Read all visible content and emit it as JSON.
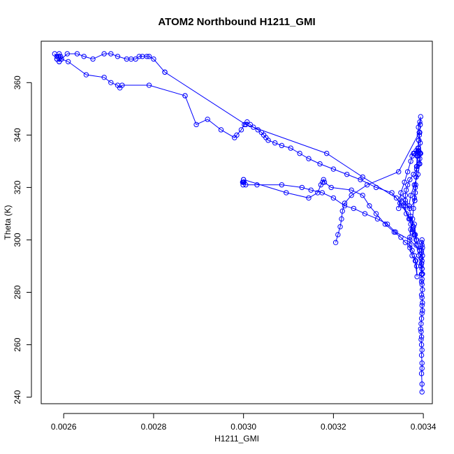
{
  "chart_data": {
    "type": "scatter",
    "title": "ATOM2 Northbound H1211_GMI",
    "xlabel": "H1211_GMI",
    "ylabel": "Theta (K)",
    "xlim": [
      0.00255,
      0.00342
    ],
    "ylim": [
      237.5,
      375.8
    ],
    "x_ticks": [
      0.0026,
      0.0028,
      0.003,
      0.0032,
      0.0034
    ],
    "x_tick_labels": [
      "0.0026",
      "0.0028",
      "0.0030",
      "0.0032",
      "0.0034"
    ],
    "y_ticks": [
      240,
      260,
      280,
      300,
      320,
      340,
      360
    ],
    "y_tick_labels": [
      "240",
      "260",
      "280",
      "300",
      "320",
      "340",
      "360"
    ],
    "grid": false,
    "legend": false,
    "color": "#0000ff",
    "marker": "open-circle",
    "line": true,
    "series": [
      {
        "x": [
          0.003397,
          0.003397,
          0.003396,
          0.003397,
          0.003397,
          0.003396,
          0.003397,
          0.003396,
          0.003395,
          0.003396,
          0.003395,
          0.003394,
          0.003395,
          0.003396,
          0.003397,
          0.003398,
          0.003397,
          0.003398,
          0.003397,
          0.003396,
          0.003398,
          0.003397,
          0.003396,
          0.003397,
          0.003396,
          0.003397,
          0.003396,
          0.003397,
          0.003398,
          0.003396,
          0.003397,
          0.003396,
          0.003397,
          0.003398,
          0.003396,
          0.003395,
          0.003396,
          0.003397,
          0.003398
        ],
        "y": [
          242,
          245,
          249,
          251,
          253,
          256,
          258,
          260,
          262,
          263,
          265,
          266,
          268,
          270,
          272,
          273,
          275,
          276,
          278,
          279,
          281,
          283,
          284,
          285,
          287,
          289,
          291,
          292,
          294,
          296,
          298,
          299,
          300,
          297,
          295,
          293,
          291,
          289,
          287
        ]
      },
      {
        "x": [
          0.003397,
          0.003395,
          0.00339,
          0.003384,
          0.003375,
          0.00337,
          0.003355,
          0.00333,
          0.003295,
          0.00326,
          0.00323,
          0.0032,
          0.00317,
          0.003145,
          0.003125,
          0.003105,
          0.003085,
          0.00307,
          0.003055,
          0.00305,
          0.003045,
          0.00304,
          0.003032,
          0.003022,
          0.003015,
          0.003008,
          0.003002,
          0.002995,
          0.002985,
          0.00298,
          0.00295,
          0.00292,
          0.002895,
          0.00287
        ],
        "y": [
          287,
          290,
          294,
          298,
          303,
          308,
          313,
          318,
          320,
          323,
          325,
          327,
          329,
          331,
          333,
          335,
          336,
          337,
          338,
          339,
          340,
          341,
          342,
          343,
          344,
          345,
          344,
          342,
          340,
          339,
          342,
          346,
          344,
          355
        ]
      },
      {
        "x": [
          0.00287,
          0.00279,
          0.00273,
          0.002725,
          0.00272,
          0.002705,
          0.00269,
          0.00265,
          0.00261,
          0.002595,
          0.00259,
          0.002585,
          0.00259,
          0.00259,
          0.002585,
          0.00258,
          0.002585,
          0.00259,
          0.002593,
          0.002595,
          0.002608,
          0.00263,
          0.002645,
          0.002665,
          0.00269,
          0.002705,
          0.00272,
          0.00274,
          0.00275,
          0.00276,
          0.002768,
          0.002775,
          0.002785,
          0.00279,
          0.0028,
          0.002825
        ],
        "y": [
          355,
          359,
          359,
          358,
          359,
          360,
          362,
          363,
          368,
          369,
          368,
          369,
          370,
          371,
          370,
          371,
          369,
          368,
          370,
          369,
          371,
          371,
          370,
          369,
          371,
          371,
          370,
          369,
          369,
          369,
          370,
          370,
          370,
          370,
          369,
          364
        ]
      },
      {
        "x": [
          0.002825,
          0.003005,
          0.003185,
          0.003265,
          0.00334,
          0.00338,
          0.003385,
          0.003382,
          0.003378,
          0.003372,
          0.003368,
          0.003372,
          0.00338,
          0.003388,
          0.003392,
          0.003394,
          0.003393,
          0.003391,
          0.003389,
          0.003392,
          0.003394,
          0.003393,
          0.003392,
          0.00339,
          0.003388,
          0.003386,
          0.003385,
          0.003384,
          0.003383,
          0.003382,
          0.003381
        ],
        "y": [
          364,
          344,
          333,
          324,
          316,
          306,
          300,
          302,
          305,
          309,
          313,
          317,
          321,
          325,
          329,
          333,
          337,
          340,
          343,
          345,
          347,
          344,
          341,
          338,
          335,
          332,
          328,
          324,
          321,
          318,
          315
        ]
      },
      {
        "x": [
          0.003381,
          0.00337,
          0.00336,
          0.003352,
          0.003348,
          0.003345,
          0.00335,
          0.003358,
          0.003365,
          0.003372,
          0.003375,
          0.003378,
          0.00338,
          0.003384,
          0.003386,
          0.003388,
          0.003389,
          0.00339,
          0.003392,
          0.003393,
          0.003392,
          0.00339,
          0.003385,
          0.003378,
          0.00337,
          0.003365,
          0.003362,
          0.00336,
          0.00336,
          0.00336,
          0.003362,
          0.003368,
          0.003372,
          0.003376,
          0.00338,
          0.003384,
          0.003388,
          0.003392
        ],
        "y": [
          315,
          312,
          314,
          316,
          314,
          312,
          318,
          322,
          326,
          330,
          332,
          333,
          333,
          334,
          333,
          334,
          335,
          334,
          333,
          333,
          331,
          329,
          327,
          325,
          323,
          321,
          319,
          317,
          315,
          313,
          310,
          308,
          306,
          304,
          302,
          300,
          298,
          296
        ]
      },
      {
        "x": [
          0.003392,
          0.00337,
          0.003338,
          0.00332,
          0.003298,
          0.00327,
          0.003245,
          0.003225,
          0.0032,
          0.003175,
          0.00315,
          0.00313,
          0.003085,
          0.00303,
          0.003005,
          0.003,
          0.002999,
          0.002998,
          0.002999,
          0.003,
          0.003001,
          0.003
        ],
        "y": [
          296,
          300,
          303,
          306,
          308,
          310,
          312,
          313,
          316,
          318,
          319,
          320,
          321,
          321,
          321,
          322,
          322,
          322,
          321,
          322,
          322,
          323
        ]
      },
      {
        "x": [
          0.003,
          0.003095,
          0.003145,
          0.003165,
          0.003172,
          0.003176,
          0.003178,
          0.00318,
          0.003195,
          0.00324,
          0.003265,
          0.00328,
          0.003295,
          0.003315,
          0.003335,
          0.00335,
          0.00336,
          0.00337,
          0.003375,
          0.00338,
          0.003383
        ],
        "y": [
          323,
          318,
          316,
          318,
          321,
          322,
          323,
          322,
          320,
          319,
          317,
          313,
          310,
          306,
          303,
          301,
          299,
          298,
          296,
          294,
          292
        ]
      },
      {
        "x": [
          0.003383,
          0.003385,
          0.003386,
          0.003382,
          0.003375,
          0.00337,
          0.00337,
          0.003372,
          0.003376,
          0.003378,
          0.00338,
          0.003382,
          0.003384,
          0.003386,
          0.003388,
          0.003389,
          0.00339,
          0.003391
        ],
        "y": [
          292,
          290,
          286,
          292,
          294,
          297,
          301,
          304,
          308,
          312,
          316,
          320,
          324,
          328,
          332,
          335,
          338,
          341
        ]
      },
      {
        "x": [
          0.003391,
          0.003345,
          0.003275,
          0.00324,
          0.003225,
          0.00322,
          0.003218,
          0.003215,
          0.00321,
          0.003205
        ],
        "y": [
          341,
          326,
          321,
          317,
          314,
          311,
          308,
          305,
          302,
          299
        ]
      }
    ]
  }
}
